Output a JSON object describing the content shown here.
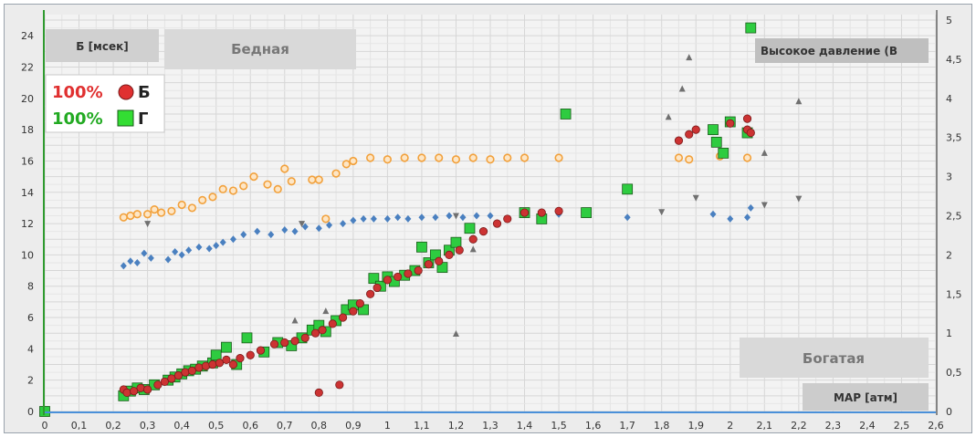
{
  "chart_data": {
    "type": "scatter",
    "xlabel": "MAP [атм]",
    "ylabel_left": "Б [мсек]",
    "xlim": [
      0,
      2.6
    ],
    "ylim_left": [
      0,
      25
    ],
    "ylim_right": [
      0,
      5
    ],
    "grid": true,
    "x_ticks": [
      "0",
      "0,1",
      "0,2",
      "0,3",
      "0,4",
      "0,5",
      "0,6",
      "0,7",
      "0,8",
      "0,9",
      "1",
      "1,1",
      "1,2",
      "1,3",
      "1,4",
      "1,5",
      "1,6",
      "1,7",
      "1,8",
      "1,9",
      "2",
      "2,1",
      "2,2",
      "2,3",
      "2,4",
      "2,5",
      "2,6"
    ],
    "y_ticks_left": [
      "0",
      "2",
      "4",
      "6",
      "8",
      "10",
      "12",
      "14",
      "16",
      "18",
      "20",
      "22",
      "24"
    ],
    "y_ticks_right": [
      "0",
      "0,5",
      "1",
      "1,5",
      "2",
      "2,5",
      "3",
      "3,5",
      "4",
      "4,5",
      "5"
    ],
    "region_labels": {
      "lean": "Бедная",
      "rich": "Богатая",
      "high_pressure": "Высокое давление (В"
    },
    "legend": [
      {
        "percent": "100%",
        "symbol": "Б",
        "color": "#e03030",
        "marker": "circle"
      },
      {
        "percent": "100%",
        "symbol": "Г",
        "color": "#22aa22",
        "marker": "square"
      }
    ],
    "series": [
      {
        "marker": "circle",
        "axis": "left",
        "color": "#cc3333",
        "points": [
          [
            0.23,
            1.4
          ],
          [
            0.24,
            1.2
          ],
          [
            0.26,
            1.3
          ],
          [
            0.28,
            1.5
          ],
          [
            0.3,
            1.4
          ],
          [
            0.33,
            1.7
          ],
          [
            0.35,
            1.9
          ],
          [
            0.37,
            2.1
          ],
          [
            0.39,
            2.3
          ],
          [
            0.41,
            2.5
          ],
          [
            0.43,
            2.6
          ],
          [
            0.45,
            2.8
          ],
          [
            0.47,
            2.9
          ],
          [
            0.49,
            3.0
          ],
          [
            0.51,
            3.1
          ],
          [
            0.53,
            3.3
          ],
          [
            0.55,
            3.0
          ],
          [
            0.57,
            3.4
          ],
          [
            0.6,
            3.6
          ],
          [
            0.63,
            3.9
          ],
          [
            0.67,
            4.3
          ],
          [
            0.7,
            4.4
          ],
          [
            0.73,
            4.5
          ],
          [
            0.76,
            4.7
          ],
          [
            0.79,
            5.0
          ],
          [
            0.81,
            5.2
          ],
          [
            0.84,
            5.6
          ],
          [
            0.87,
            6.0
          ],
          [
            0.9,
            6.4
          ],
          [
            0.92,
            6.9
          ],
          [
            0.95,
            7.5
          ],
          [
            0.97,
            7.9
          ],
          [
            1.0,
            8.4
          ],
          [
            1.03,
            8.6
          ],
          [
            1.06,
            8.8
          ],
          [
            1.09,
            9.0
          ],
          [
            1.12,
            9.4
          ],
          [
            1.15,
            9.6
          ],
          [
            1.18,
            10.0
          ],
          [
            1.21,
            10.3
          ],
          [
            1.25,
            11.0
          ],
          [
            1.28,
            11.5
          ],
          [
            1.32,
            12.0
          ],
          [
            1.35,
            12.3
          ],
          [
            1.4,
            12.7
          ],
          [
            1.45,
            12.7
          ],
          [
            1.5,
            12.8
          ],
          [
            0.8,
            1.2
          ],
          [
            0.86,
            1.7
          ],
          [
            1.85,
            17.3
          ],
          [
            1.88,
            17.7
          ],
          [
            1.9,
            18.0
          ],
          [
            2.0,
            18.4
          ],
          [
            2.05,
            18.7
          ],
          [
            2.05,
            18.0
          ],
          [
            2.06,
            17.8
          ]
        ]
      },
      {
        "marker": "square",
        "axis": "left",
        "color": "#2ecc40",
        "points": [
          [
            0.0,
            0.0
          ],
          [
            0.23,
            1.0
          ],
          [
            0.25,
            1.3
          ],
          [
            0.27,
            1.5
          ],
          [
            0.29,
            1.4
          ],
          [
            0.32,
            1.7
          ],
          [
            0.36,
            2.0
          ],
          [
            0.38,
            2.2
          ],
          [
            0.4,
            2.4
          ],
          [
            0.42,
            2.6
          ],
          [
            0.44,
            2.7
          ],
          [
            0.46,
            2.9
          ],
          [
            0.49,
            3.1
          ],
          [
            0.5,
            3.6
          ],
          [
            0.53,
            4.1
          ],
          [
            0.56,
            3.0
          ],
          [
            0.59,
            4.7
          ],
          [
            0.64,
            3.8
          ],
          [
            0.68,
            4.4
          ],
          [
            0.72,
            4.2
          ],
          [
            0.75,
            4.7
          ],
          [
            0.78,
            5.2
          ],
          [
            0.8,
            5.5
          ],
          [
            0.82,
            5.1
          ],
          [
            0.85,
            5.8
          ],
          [
            0.88,
            6.5
          ],
          [
            0.9,
            6.8
          ],
          [
            0.93,
            6.5
          ],
          [
            0.96,
            8.5
          ],
          [
            0.98,
            8.0
          ],
          [
            1.0,
            8.6
          ],
          [
            1.02,
            8.3
          ],
          [
            1.05,
            8.7
          ],
          [
            1.08,
            9.0
          ],
          [
            1.1,
            10.5
          ],
          [
            1.12,
            9.5
          ],
          [
            1.14,
            10.0
          ],
          [
            1.16,
            9.2
          ],
          [
            1.18,
            10.3
          ],
          [
            1.2,
            10.8
          ],
          [
            1.24,
            11.7
          ],
          [
            1.4,
            12.7
          ],
          [
            1.45,
            12.3
          ],
          [
            1.52,
            19.0
          ],
          [
            1.58,
            12.7
          ],
          [
            1.7,
            14.2
          ],
          [
            1.95,
            18.0
          ],
          [
            1.96,
            17.2
          ],
          [
            1.98,
            16.5
          ],
          [
            2.0,
            18.5
          ],
          [
            2.05,
            17.8
          ],
          [
            2.06,
            24.5
          ]
        ]
      },
      {
        "marker": "diamond",
        "axis": "left",
        "color": "#4a80c0",
        "points": [
          [
            0.23,
            9.3
          ],
          [
            0.25,
            9.6
          ],
          [
            0.27,
            9.5
          ],
          [
            0.29,
            10.1
          ],
          [
            0.31,
            9.8
          ],
          [
            0.36,
            9.7
          ],
          [
            0.38,
            10.2
          ],
          [
            0.4,
            10.0
          ],
          [
            0.42,
            10.3
          ],
          [
            0.45,
            10.5
          ],
          [
            0.48,
            10.4
          ],
          [
            0.5,
            10.6
          ],
          [
            0.52,
            10.8
          ],
          [
            0.55,
            11.0
          ],
          [
            0.58,
            11.3
          ],
          [
            0.62,
            11.5
          ],
          [
            0.66,
            11.3
          ],
          [
            0.7,
            11.6
          ],
          [
            0.73,
            11.5
          ],
          [
            0.76,
            11.8
          ],
          [
            0.8,
            11.7
          ],
          [
            0.83,
            11.9
          ],
          [
            0.87,
            12.0
          ],
          [
            0.9,
            12.2
          ],
          [
            0.93,
            12.3
          ],
          [
            0.96,
            12.3
          ],
          [
            1.0,
            12.3
          ],
          [
            1.03,
            12.4
          ],
          [
            1.06,
            12.3
          ],
          [
            1.1,
            12.4
          ],
          [
            1.14,
            12.4
          ],
          [
            1.18,
            12.5
          ],
          [
            1.22,
            12.4
          ],
          [
            1.26,
            12.5
          ],
          [
            1.3,
            12.5
          ],
          [
            1.4,
            12.6
          ],
          [
            1.5,
            12.6
          ],
          [
            1.7,
            12.4
          ],
          [
            1.95,
            12.6
          ],
          [
            2.0,
            12.3
          ],
          [
            2.05,
            12.4
          ],
          [
            2.06,
            13.0
          ]
        ]
      },
      {
        "marker": "ring",
        "axis": "left",
        "color": "#f2a13c",
        "points": [
          [
            0.23,
            12.4
          ],
          [
            0.25,
            12.5
          ],
          [
            0.27,
            12.6
          ],
          [
            0.3,
            12.6
          ],
          [
            0.32,
            12.9
          ],
          [
            0.34,
            12.7
          ],
          [
            0.37,
            12.8
          ],
          [
            0.4,
            13.2
          ],
          [
            0.43,
            13.0
          ],
          [
            0.46,
            13.5
          ],
          [
            0.49,
            13.7
          ],
          [
            0.52,
            14.2
          ],
          [
            0.55,
            14.1
          ],
          [
            0.58,
            14.4
          ],
          [
            0.61,
            15.0
          ],
          [
            0.65,
            14.5
          ],
          [
            0.68,
            14.2
          ],
          [
            0.7,
            15.5
          ],
          [
            0.72,
            14.7
          ],
          [
            0.78,
            14.8
          ],
          [
            0.8,
            14.8
          ],
          [
            0.82,
            12.3
          ],
          [
            0.85,
            15.2
          ],
          [
            0.88,
            15.8
          ],
          [
            0.9,
            16.0
          ],
          [
            0.95,
            16.2
          ],
          [
            1.0,
            16.1
          ],
          [
            1.05,
            16.2
          ],
          [
            1.1,
            16.2
          ],
          [
            1.15,
            16.2
          ],
          [
            1.2,
            16.1
          ],
          [
            1.25,
            16.2
          ],
          [
            1.3,
            16.1
          ],
          [
            1.35,
            16.2
          ],
          [
            1.4,
            16.2
          ],
          [
            1.5,
            16.2
          ],
          [
            1.85,
            16.2
          ],
          [
            1.88,
            16.1
          ],
          [
            1.97,
            16.3
          ],
          [
            2.05,
            16.2
          ]
        ]
      },
      {
        "marker": "triangle-up",
        "axis": "right",
        "color": "#707070",
        "points": [
          [
            0.73,
            1.16
          ],
          [
            0.82,
            1.28
          ],
          [
            1.2,
            0.99
          ],
          [
            1.25,
            2.07
          ],
          [
            1.82,
            3.76
          ],
          [
            1.86,
            4.12
          ],
          [
            1.88,
            4.52
          ],
          [
            2.1,
            3.3
          ],
          [
            2.2,
            3.96
          ]
        ]
      },
      {
        "marker": "triangle-down",
        "axis": "right",
        "color": "#707070",
        "points": [
          [
            0.3,
            2.4
          ],
          [
            0.75,
            2.4
          ],
          [
            1.2,
            2.5
          ],
          [
            1.8,
            2.55
          ],
          [
            1.9,
            2.73
          ],
          [
            2.1,
            2.64
          ],
          [
            2.2,
            2.72
          ]
        ]
      }
    ]
  }
}
